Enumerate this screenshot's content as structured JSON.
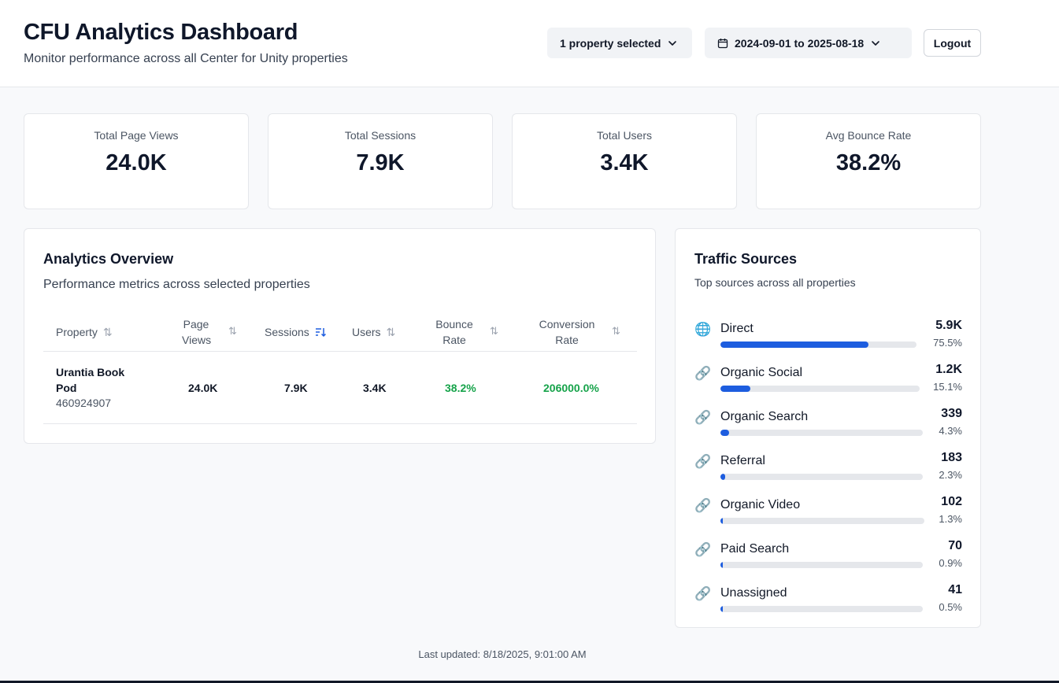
{
  "header": {
    "title": "CFU Analytics Dashboard",
    "subtitle": "Monitor performance across all Center for Unity properties",
    "property_select": "1 property selected",
    "date_range": "2024-09-01 to 2025-08-18",
    "logout_label": "Logout"
  },
  "kpis": [
    {
      "label": "Total Page Views",
      "value": "24.0K"
    },
    {
      "label": "Total Sessions",
      "value": "7.9K"
    },
    {
      "label": "Total Users",
      "value": "3.4K"
    },
    {
      "label": "Avg Bounce Rate",
      "value": "38.2%"
    }
  ],
  "overview": {
    "title": "Analytics Overview",
    "description": "Performance metrics across selected properties",
    "columns": {
      "property": "Property",
      "page_views_1": "Page",
      "page_views_2": "Views",
      "sessions": "Sessions",
      "users": "Users",
      "bounce_1": "Bounce",
      "bounce_2": "Rate",
      "conversion_1": "Conversion",
      "conversion_2": "Rate"
    },
    "rows": [
      {
        "property_line1": "Urantia Book",
        "property_line2": "Pod",
        "property_id": "460924907",
        "page_views": "24.0K",
        "sessions": "7.9K",
        "users": "3.4K",
        "bounce_rate": "38.2%",
        "conversion_rate": "206000.0%"
      }
    ]
  },
  "traffic": {
    "title": "Traffic Sources",
    "description": "Top sources across all properties",
    "sources": [
      {
        "name": "Direct",
        "value": "5.9K",
        "pct": "75.5%",
        "fraction": 0.755,
        "icon": "globe-icon"
      },
      {
        "name": "Organic Social",
        "value": "1.2K",
        "pct": "15.1%",
        "fraction": 0.151,
        "icon": "link-icon"
      },
      {
        "name": "Organic Search",
        "value": "339",
        "pct": "4.3%",
        "fraction": 0.043,
        "icon": "link-icon"
      },
      {
        "name": "Referral",
        "value": "183",
        "pct": "2.3%",
        "fraction": 0.023,
        "icon": "link-icon"
      },
      {
        "name": "Organic Video",
        "value": "102",
        "pct": "1.3%",
        "fraction": 0.013,
        "icon": "link-icon"
      },
      {
        "name": "Paid Search",
        "value": "70",
        "pct": "0.9%",
        "fraction": 0.009,
        "icon": "link-icon"
      },
      {
        "name": "Unassigned",
        "value": "41",
        "pct": "0.5%",
        "fraction": 0.005,
        "icon": "link-icon"
      }
    ]
  },
  "footer": {
    "last_updated": "Last updated: 8/18/2025, 9:01:00 AM"
  },
  "colors": {
    "accent": "#1d5ddf",
    "positive": "#16a34a"
  }
}
